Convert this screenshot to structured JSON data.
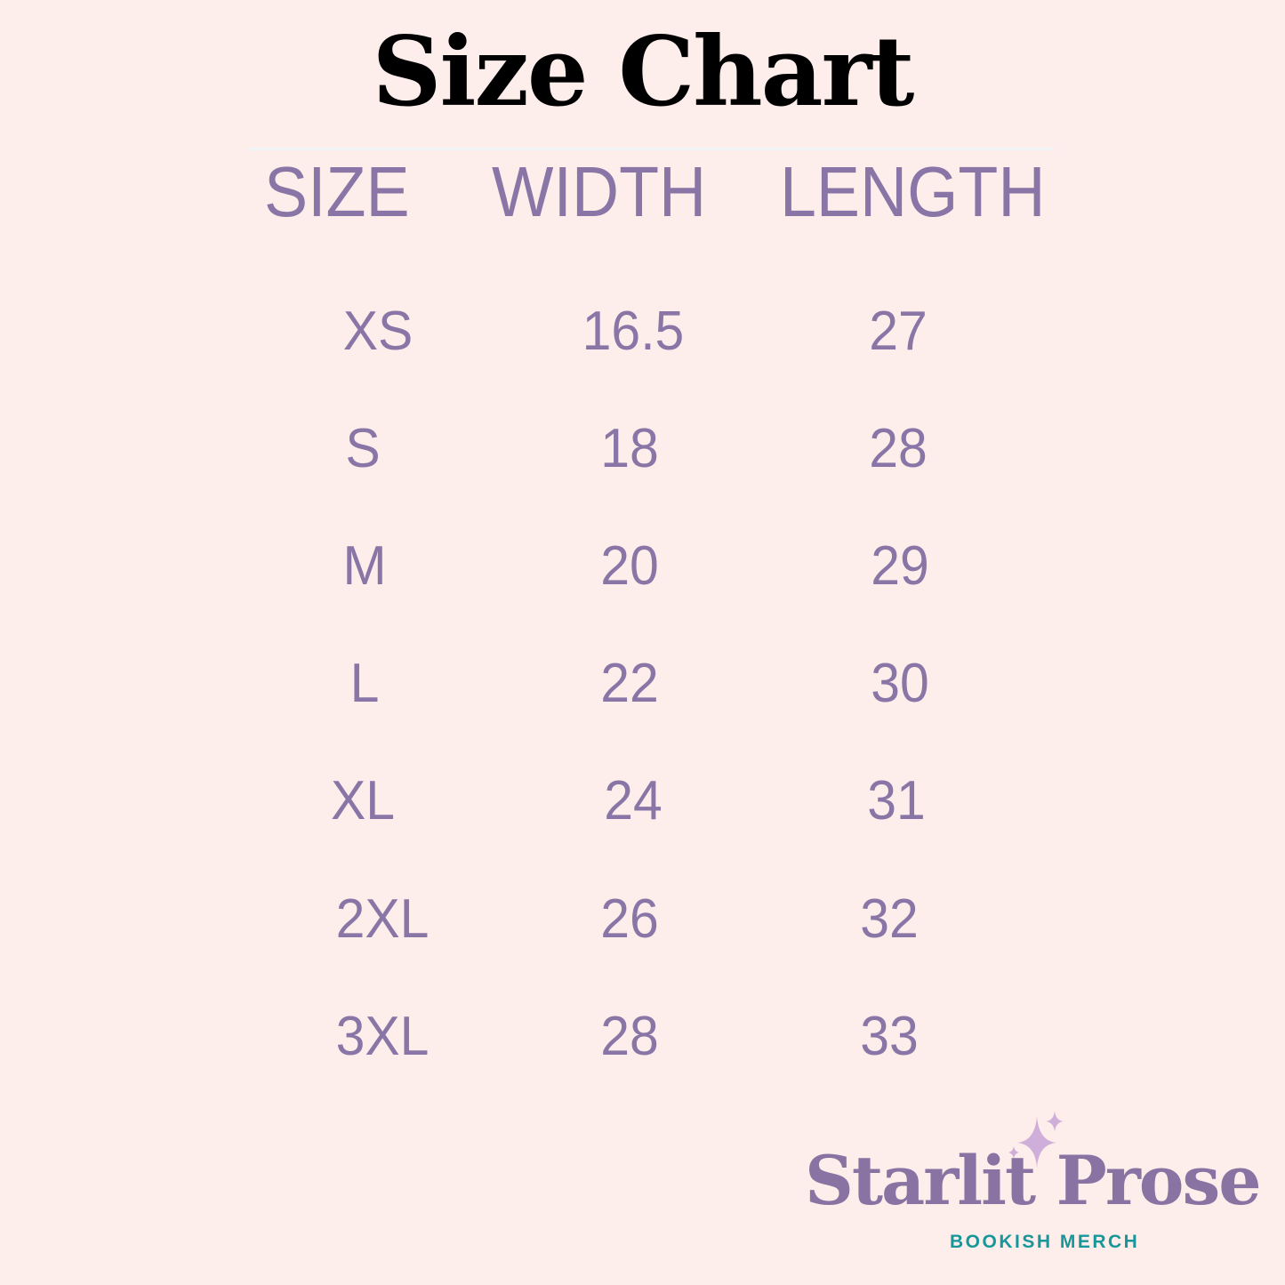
{
  "title": "Size Chart",
  "table": {
    "headers": [
      "SIZE",
      "WIDTH",
      "LENGTH"
    ],
    "rows": [
      {
        "size": "XS",
        "width": "16.5",
        "length": "27"
      },
      {
        "size": "S",
        "width": "18",
        "length": "28"
      },
      {
        "size": "M",
        "width": "20",
        "length": "29"
      },
      {
        "size": "L",
        "width": "22",
        "length": "30"
      },
      {
        "size": "XL",
        "width": "24",
        "length": "31"
      },
      {
        "size": "2XL",
        "width": "26",
        "length": "32"
      },
      {
        "size": "3XL",
        "width": "28",
        "length": "33"
      }
    ]
  },
  "brand": {
    "name": "Starlit Prose",
    "tagline": "BOOKISH MERCH",
    "icon": "sparkle-stars-icon"
  },
  "colors": {
    "background": "#fdeeeb",
    "text": "#8a76a6",
    "title": "#000000",
    "tagline": "#17979a",
    "sparkle": "#cfaed9"
  }
}
